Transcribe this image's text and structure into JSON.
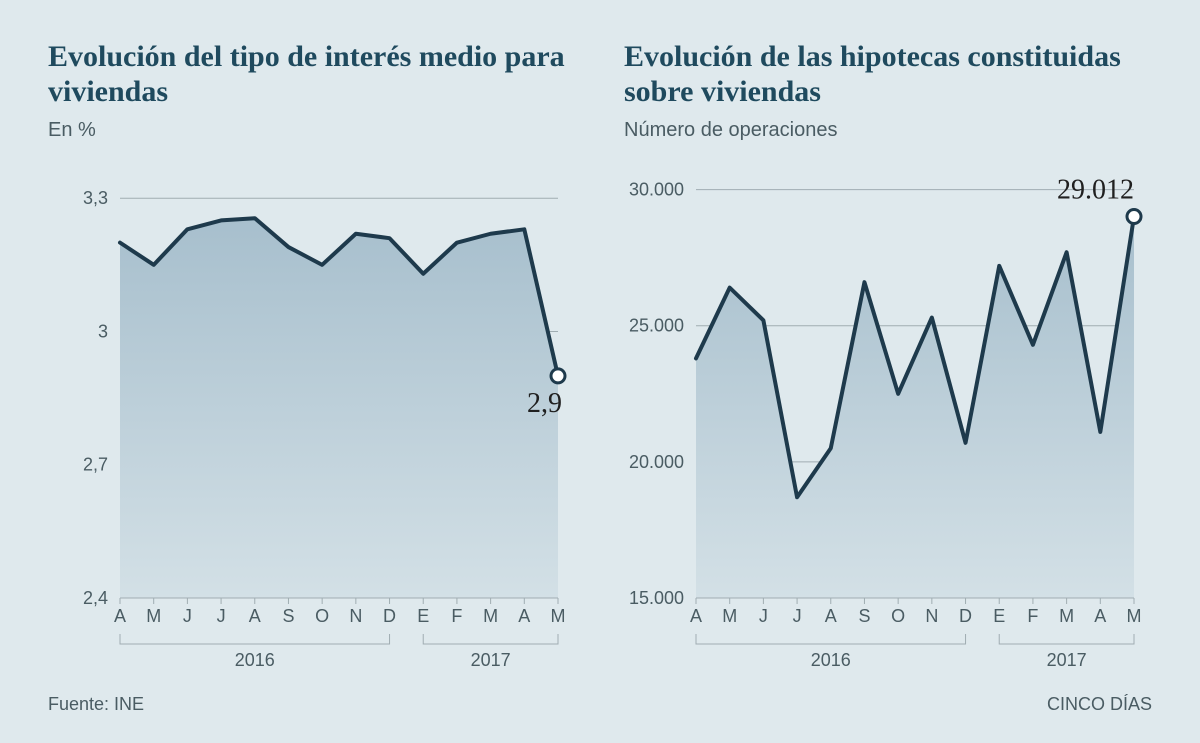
{
  "background_color": "#dfe9ed",
  "footer": {
    "left": "Fuente: INE",
    "right": "CINCO DÍAS",
    "font_size": 18,
    "color": "#4a5c63"
  },
  "left_chart": {
    "type": "area-line",
    "title": "Evolución del tipo de interés medio para viviendas",
    "title_fontsize": 30,
    "title_color": "#1f4a5e",
    "subtitle": "En %",
    "subtitle_fontsize": 20,
    "subtitle_color": "#4a5c63",
    "x_labels": [
      "A",
      "M",
      "J",
      "J",
      "A",
      "S",
      "O",
      "N",
      "D",
      "E",
      "F",
      "M",
      "A",
      "M"
    ],
    "x_year_groups": [
      {
        "label": "2016",
        "start": 0,
        "end": 8
      },
      {
        "label": "2017",
        "start": 9,
        "end": 13
      }
    ],
    "y_ticks": [
      2.4,
      2.7,
      3.0,
      3.3
    ],
    "ylim": [
      2.4,
      3.35
    ],
    "values": [
      3.2,
      3.15,
      3.23,
      3.25,
      3.255,
      3.19,
      3.15,
      3.22,
      3.21,
      3.13,
      3.2,
      3.22,
      3.23,
      2.9
    ],
    "end_value_label": "2,9",
    "end_label_fontsize": 28,
    "end_label_color": "#202020",
    "line_color": "#1e3a4c",
    "line_width": 4,
    "fill_top_color": "#a7bfcd",
    "fill_bottom_color": "#d3e0e6",
    "axis_color": "#a0adb2",
    "tick_font_size": 18,
    "tick_color": "#4a5c63",
    "year_font_size": 18,
    "marker_fill": "#ffffff",
    "marker_stroke": "#1e3a4c",
    "marker_radius": 7,
    "marker_stroke_width": 3
  },
  "right_chart": {
    "type": "area-line",
    "title": "Evolución de las hipotecas constituidas sobre viviendas",
    "title_fontsize": 30,
    "title_color": "#1f4a5e",
    "subtitle": "Número de operaciones",
    "subtitle_fontsize": 20,
    "subtitle_color": "#4a5c63",
    "x_labels": [
      "A",
      "M",
      "J",
      "J",
      "A",
      "S",
      "O",
      "N",
      "D",
      "E",
      "F",
      "M",
      "A",
      "M"
    ],
    "x_year_groups": [
      {
        "label": "2016",
        "start": 0,
        "end": 8
      },
      {
        "label": "2017",
        "start": 9,
        "end": 13
      }
    ],
    "y_ticks": [
      15000,
      20000,
      25000,
      30000
    ],
    "y_tick_labels": [
      "15.000",
      "20.000",
      "25.000",
      "30.000"
    ],
    "ylim": [
      15000,
      30500
    ],
    "values": [
      23800,
      26400,
      25200,
      18700,
      20500,
      26600,
      22500,
      25300,
      20700,
      27200,
      24300,
      27700,
      21100,
      29012
    ],
    "end_value_label": "29.012",
    "end_label_fontsize": 28,
    "end_label_color": "#202020",
    "line_color": "#1e3a4c",
    "line_width": 4,
    "fill_top_color": "#a7bfcd",
    "fill_bottom_color": "#d3e0e6",
    "axis_color": "#a0adb2",
    "tick_font_size": 18,
    "tick_color": "#4a5c63",
    "year_font_size": 18,
    "marker_fill": "#ffffff",
    "marker_stroke": "#1e3a4c",
    "marker_radius": 7,
    "marker_stroke_width": 3
  }
}
